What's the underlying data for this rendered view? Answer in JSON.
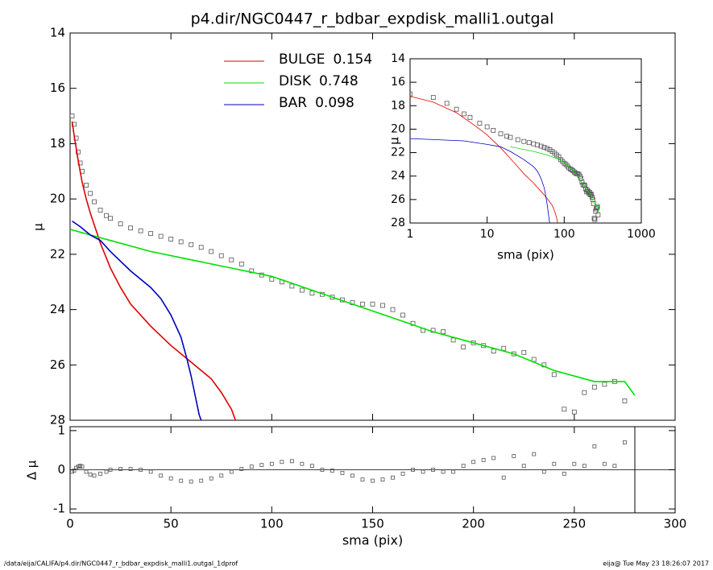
{
  "chart_data": [
    {
      "type": "line",
      "title": "p4.dir/NGC0447_r_bdbar_expdisk_malli1.outgal",
      "y_label": "μ",
      "xlim": [
        0,
        300
      ],
      "ylim": [
        28,
        14
      ],
      "yticks": [
        14,
        16,
        18,
        20,
        22,
        24,
        26,
        28
      ],
      "series": [
        {
          "style": "points",
          "color": "#555555",
          "x": [
            1,
            2,
            3,
            4,
            5,
            6,
            8,
            10,
            12,
            15,
            18,
            20,
            25,
            30,
            35,
            40,
            45,
            50,
            55,
            60,
            65,
            70,
            75,
            80,
            85,
            90,
            95,
            100,
            105,
            110,
            115,
            120,
            125,
            130,
            135,
            140,
            145,
            150,
            155,
            160,
            165,
            170,
            175,
            180,
            185,
            190,
            195,
            200,
            205,
            210,
            215,
            220,
            225,
            230,
            235,
            240,
            245,
            250,
            255,
            260,
            265,
            270,
            275
          ],
          "values": [
            17.0,
            17.3,
            17.8,
            18.3,
            18.7,
            19.0,
            19.5,
            19.8,
            20.1,
            20.4,
            20.6,
            20.7,
            20.9,
            21.05,
            21.15,
            21.25,
            21.35,
            21.45,
            21.55,
            21.65,
            21.75,
            21.9,
            22.05,
            22.2,
            22.35,
            22.6,
            22.75,
            22.9,
            23.0,
            23.15,
            23.3,
            23.4,
            23.45,
            23.55,
            23.65,
            23.75,
            23.8,
            23.8,
            23.85,
            24.0,
            24.2,
            24.5,
            24.75,
            24.75,
            24.8,
            25.1,
            25.35,
            25.2,
            25.3,
            25.5,
            25.4,
            25.6,
            25.55,
            25.8,
            26.0,
            26.35,
            27.6,
            27.7,
            27.0,
            26.8,
            26.7,
            26.6,
            27.3
          ]
        },
        {
          "style": "line",
          "name": "BULGE",
          "fraction": 0.154,
          "color": "#e00000",
          "x": [
            1,
            2,
            4,
            6,
            8,
            10,
            15,
            20,
            25,
            30,
            40,
            50,
            60,
            70,
            75,
            80,
            82
          ],
          "values": [
            17.2,
            17.7,
            18.6,
            19.4,
            20.0,
            20.5,
            21.6,
            22.5,
            23.2,
            23.8,
            24.6,
            25.3,
            25.9,
            26.5,
            27.0,
            27.6,
            28.0
          ]
        },
        {
          "style": "line",
          "name": "DISK",
          "fraction": 0.748,
          "color": "#00e000",
          "x": [
            0,
            20,
            40,
            60,
            80,
            100,
            120,
            140,
            160,
            180,
            200,
            220,
            240,
            260,
            270,
            275,
            280
          ],
          "values": [
            21.1,
            21.5,
            21.9,
            22.2,
            22.5,
            22.8,
            23.3,
            23.8,
            24.3,
            24.8,
            25.2,
            25.6,
            26.2,
            26.6,
            26.6,
            26.6,
            27.1
          ]
        },
        {
          "style": "line",
          "name": "BAR",
          "fraction": 0.098,
          "color": "#0000c0",
          "x": [
            1,
            5,
            10,
            15,
            20,
            30,
            40,
            45,
            50,
            55,
            58,
            60,
            62,
            64,
            65
          ],
          "values": [
            20.8,
            21.0,
            21.3,
            21.5,
            21.9,
            22.6,
            23.2,
            23.6,
            24.2,
            25.0,
            25.8,
            26.4,
            27.1,
            27.8,
            28.0
          ]
        }
      ]
    },
    {
      "type": "scatter",
      "x_label": "sma (pix)",
      "y_label": "Δ μ",
      "xlim": [
        0,
        300
      ],
      "xticks": [
        0,
        50,
        100,
        150,
        200,
        250,
        300
      ],
      "ylim": [
        -1.1,
        1.1
      ],
      "yticks": [
        -1,
        0,
        1
      ],
      "color": "#555555",
      "x": [
        1,
        2,
        3,
        4,
        5,
        6,
        8,
        10,
        12,
        15,
        18,
        20,
        25,
        30,
        35,
        40,
        45,
        50,
        55,
        60,
        65,
        70,
        75,
        80,
        85,
        90,
        95,
        100,
        105,
        110,
        115,
        120,
        125,
        130,
        135,
        140,
        145,
        150,
        155,
        160,
        165,
        170,
        175,
        180,
        185,
        190,
        195,
        200,
        205,
        210,
        215,
        220,
        225,
        230,
        235,
        240,
        245,
        250,
        255,
        260,
        265,
        270,
        275
      ],
      "values": [
        -0.05,
        -0.02,
        0.05,
        0.08,
        0.1,
        0.08,
        -0.05,
        -0.12,
        -0.15,
        -0.1,
        -0.05,
        0,
        0.02,
        0.02,
        0,
        -0.05,
        -0.15,
        -0.22,
        -0.28,
        -0.3,
        -0.28,
        -0.22,
        -0.15,
        -0.05,
        0.02,
        0.08,
        0.12,
        0.15,
        0.2,
        0.22,
        0.15,
        0.1,
        0,
        -0.02,
        -0.08,
        -0.15,
        -0.25,
        -0.28,
        -0.25,
        -0.2,
        -0.1,
        0,
        -0.05,
        0,
        -0.05,
        -0.05,
        0.1,
        0.2,
        0.25,
        0.3,
        -0.2,
        0.35,
        0.1,
        0.4,
        -0.05,
        0.15,
        -0.1,
        0.15,
        0.1,
        0.6,
        0.15,
        0.1,
        0.7
      ]
    },
    {
      "type": "inset",
      "x_label": "sma (pix)",
      "y_label": "μ",
      "log_x": true,
      "xlim": [
        1,
        1000
      ],
      "xticks": [
        1,
        10,
        100,
        1000
      ],
      "ylim": [
        28,
        14
      ],
      "yticks": [
        14,
        16,
        18,
        20,
        22,
        24,
        26,
        28
      ]
    }
  ],
  "footer": {
    "left": "/data/eija/CALIFA/p4.dir/NGC0447_r_bdbar_expdisk_malli1.outgal_1dprof",
    "right": "eija@  Tue May 23 18:26:07 2017"
  }
}
